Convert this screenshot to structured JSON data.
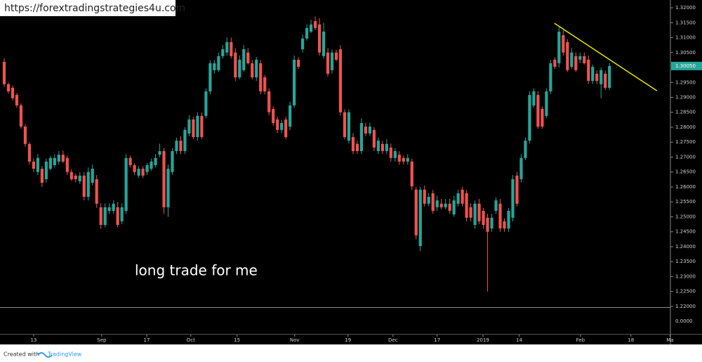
{
  "header": {
    "url": "https://forextradingstrategies4u.com"
  },
  "footer": {
    "created_with": "Created with",
    "brand": "TradingView"
  },
  "chart_data": {
    "type": "candlestick",
    "annotation": "long trade for me",
    "up_color": "#26a69a",
    "down_color": "#ef5350",
    "xlim": [
      -1,
      158.5
    ],
    "ylim": [
      1.21976,
      1.32259
    ],
    "xticks": [
      {
        "value": 7.0,
        "label": "13"
      },
      {
        "value": 23.2,
        "label": "Sep"
      },
      {
        "value": 33.9,
        "label": "17"
      },
      {
        "value": 44.4,
        "label": "Oct"
      },
      {
        "value": 55.4,
        "label": "15"
      },
      {
        "value": 69.1,
        "label": "Nov"
      },
      {
        "value": 81.8,
        "label": "19"
      },
      {
        "value": 92.5,
        "label": "Dec"
      },
      {
        "value": 103.0,
        "label": "17"
      },
      {
        "value": 113.9,
        "label": "2019"
      },
      {
        "value": 122.5,
        "label": "14"
      },
      {
        "value": 137.1,
        "label": "Feb"
      },
      {
        "value": 149.1,
        "label": "18"
      },
      {
        "value": 158.4,
        "label": "Ma"
      }
    ],
    "yticks": [
      {
        "value": 1.32,
        "label": "1.32000"
      },
      {
        "value": 1.315,
        "label": "1.31500"
      },
      {
        "value": 1.31,
        "label": "1.31000"
      },
      {
        "value": 1.305,
        "label": "1.30500"
      },
      {
        "value": 1.295,
        "label": "1.29500"
      },
      {
        "value": 1.29,
        "label": "1.29000"
      },
      {
        "value": 1.285,
        "label": "1.28500"
      },
      {
        "value": 1.28,
        "label": "1.28000"
      },
      {
        "value": 1.275,
        "label": "1.27500"
      },
      {
        "value": 1.27,
        "label": "1.27000"
      },
      {
        "value": 1.265,
        "label": "1.26500"
      },
      {
        "value": 1.26,
        "label": "1.26000"
      },
      {
        "value": 1.255,
        "label": "1.25500"
      },
      {
        "value": 1.25,
        "label": "1.25000"
      },
      {
        "value": 1.245,
        "label": "1.24500"
      },
      {
        "value": 1.24,
        "label": "1.24000"
      },
      {
        "value": 1.235,
        "label": "1.23500"
      },
      {
        "value": 1.23,
        "label": "1.23000"
      },
      {
        "value": 1.225,
        "label": "1.22500"
      },
      {
        "value": 1.22,
        "label": "1.22000"
      }
    ],
    "last_price": {
      "value": 1.3005,
      "label": "1.30050",
      "color": "#26a69a"
    },
    "lower_pane_label": "0.0000",
    "trendline": {
      "color": "#e8e800",
      "x": [
        130.9,
        155.3
      ],
      "y": [
        1.3148,
        1.2922
      ]
    },
    "open": [
      1.3019,
      1.2944,
      1.2932,
      1.2908,
      1.2873,
      1.2802,
      1.2744,
      1.2685,
      1.265,
      1.2661,
      1.2626,
      1.2661,
      1.2673,
      1.2685,
      1.2708,
      1.2697,
      1.265,
      1.2638,
      1.2619,
      1.2638,
      1.2567,
      1.2614,
      1.2626,
      1.2532,
      1.2473,
      1.252,
      1.252,
      1.2532,
      1.2485,
      1.252,
      1.2697,
      1.2673,
      1.2638,
      1.2661,
      1.265,
      1.2661,
      1.2673,
      1.2708,
      1.272,
      1.2532,
      1.265,
      1.272,
      1.2755,
      1.272,
      1.2779,
      1.2826,
      1.2767,
      1.2838,
      1.2838,
      1.292,
      1.2991,
      1.2991,
      1.3038,
      1.305,
      1.3085,
      1.305,
      1.2967,
      1.2991,
      1.305,
      1.3014,
      1.2967,
      1.3014,
      1.2967,
      1.292,
      1.2861,
      1.2826,
      1.2791,
      1.2826,
      1.2802,
      1.2873,
      1.3026,
      1.3061,
      1.3097,
      1.312,
      1.3155,
      1.3144,
      1.3038,
      1.305,
      1.2991,
      1.305,
      1.3061,
      1.285,
      1.2755,
      1.2767,
      1.2744,
      1.272,
      1.2802,
      1.2779,
      1.2791,
      1.272,
      1.2744,
      1.272,
      1.2732,
      1.2697,
      1.2708,
      1.2697,
      1.2685,
      1.2685,
      1.2591,
      1.2402,
      1.2591,
      1.2544,
      1.2579,
      1.2532,
      1.2544,
      1.2532,
      1.2544,
      1.2508,
      1.2544,
      1.2591,
      1.2579,
      1.2532,
      1.2473,
      1.2544,
      1.252,
      1.2497,
      1.2461,
      1.252,
      1.2544,
      1.2485,
      1.2461,
      1.2497,
      1.2638,
      1.2626,
      1.2697,
      1.2755,
      1.2873,
      1.2908,
      1.2861,
      1.2838,
      1.292,
      1.3026,
      1.3014,
      1.3108,
      1.3085,
      1.3002,
      1.3038,
      1.3026,
      1.3038,
      1.3026,
      1.2955,
      1.2979,
      1.2944,
      1.2979,
      1.2932
    ],
    "high": [
      1.3031,
      1.295,
      1.294,
      1.2915,
      1.288,
      1.281,
      1.275,
      1.2695,
      1.271,
      1.267,
      1.2695,
      1.2705,
      1.271,
      1.272,
      1.2722,
      1.2705,
      1.266,
      1.2645,
      1.265,
      1.265,
      1.2665,
      1.2675,
      1.264,
      1.2545,
      1.2545,
      1.2545,
      1.2555,
      1.255,
      1.2545,
      1.271,
      1.2705,
      1.268,
      1.267,
      1.267,
      1.268,
      1.2695,
      1.271,
      1.2745,
      1.273,
      1.2675,
      1.273,
      1.2765,
      1.277,
      1.28,
      1.284,
      1.2835,
      1.285,
      1.285,
      1.293,
      1.3025,
      1.3025,
      1.305,
      1.3075,
      1.31,
      1.31,
      1.3065,
      1.304,
      1.3075,
      1.3065,
      1.3025,
      1.3035,
      1.3025,
      1.2975,
      1.293,
      1.287,
      1.2835,
      1.2825,
      1.2835,
      1.2885,
      1.304,
      1.3035,
      1.311,
      1.3145,
      1.316,
      1.317,
      1.3165,
      1.315,
      1.3065,
      1.306,
      1.306,
      1.3075,
      1.286,
      1.286,
      1.278,
      1.2755,
      1.283,
      1.2815,
      1.2815,
      1.28,
      1.2765,
      1.2755,
      1.276,
      1.2745,
      1.273,
      1.272,
      1.2705,
      1.271,
      1.2695,
      1.26,
      1.26,
      1.2605,
      1.258,
      1.259,
      1.257,
      1.256,
      1.256,
      1.256,
      1.257,
      1.259,
      1.26,
      1.259,
      1.2545,
      1.2555,
      1.256,
      1.253,
      1.251,
      1.251,
      1.2565,
      1.256,
      1.2495,
      1.253,
      1.264,
      1.265,
      1.271,
      1.2765,
      1.292,
      1.293,
      1.292,
      1.287,
      1.293,
      1.3025,
      1.3035,
      1.3135,
      1.3125,
      1.3095,
      1.3065,
      1.305,
      1.305,
      1.305,
      1.304,
      1.301,
      1.299,
      1.3,
      1.299,
      1.3015
    ],
    "low": [
      1.2935,
      1.2912,
      1.289,
      1.2865,
      1.2795,
      1.2735,
      1.2675,
      1.265,
      1.264,
      1.26,
      1.2615,
      1.2655,
      1.2665,
      1.2675,
      1.268,
      1.264,
      1.262,
      1.2615,
      1.261,
      1.2555,
      1.2555,
      1.2605,
      1.253,
      1.246,
      1.2465,
      1.251,
      1.251,
      1.2465,
      1.2475,
      1.251,
      1.2665,
      1.264,
      1.263,
      1.263,
      1.264,
      1.2655,
      1.2665,
      1.27,
      1.251,
      1.25,
      1.264,
      1.271,
      1.271,
      1.271,
      1.277,
      1.276,
      1.2755,
      1.276,
      1.283,
      1.291,
      1.298,
      1.2985,
      1.303,
      1.304,
      1.303,
      1.2955,
      1.296,
      1.2985,
      1.301,
      1.296,
      1.2955,
      1.291,
      1.291,
      1.284,
      1.2805,
      1.278,
      1.278,
      1.276,
      1.279,
      1.2865,
      1.2995,
      1.305,
      1.309,
      1.3115,
      1.3125,
      1.304,
      1.303,
      1.297,
      1.298,
      1.302,
      1.284,
      1.276,
      1.2745,
      1.271,
      1.271,
      1.271,
      1.277,
      1.277,
      1.272,
      1.271,
      1.271,
      1.271,
      1.2685,
      1.2685,
      1.2675,
      1.2675,
      1.2675,
      1.259,
      1.2425,
      1.2385,
      1.2535,
      1.2535,
      1.251,
      1.252,
      1.2525,
      1.2525,
      1.251,
      1.25,
      1.2535,
      1.2535,
      1.2485,
      1.2485,
      1.246,
      1.2475,
      1.246,
      1.225,
      1.245,
      1.251,
      1.245,
      1.245,
      1.245,
      1.2485,
      1.2535,
      1.2615,
      1.269,
      1.2745,
      1.2865,
      1.2795,
      1.2795,
      1.283,
      1.291,
      1.2995,
      1.3,
      1.304,
      1.2985,
      1.2995,
      1.2985,
      1.3015,
      1.301,
      1.2945,
      1.2945,
      1.2945,
      1.2897,
      1.2925,
      1.2925
    ],
    "close": [
      1.2944,
      1.292,
      1.2897,
      1.2873,
      1.2802,
      1.2744,
      1.2685,
      1.2661,
      1.2697,
      1.2614,
      1.2685,
      1.2697,
      1.2697,
      1.2708,
      1.2685,
      1.265,
      1.2626,
      1.2626,
      1.2638,
      1.2567,
      1.265,
      1.2661,
      1.2544,
      1.2473,
      1.2532,
      1.2532,
      1.2544,
      1.2473,
      1.2532,
      1.2697,
      1.2673,
      1.265,
      1.2661,
      1.2638,
      1.2673,
      1.2685,
      1.2697,
      1.272,
      1.2532,
      1.2661,
      1.272,
      1.2755,
      1.272,
      1.2791,
      1.2826,
      1.2767,
      1.2838,
      1.2767,
      1.292,
      1.3014,
      1.3014,
      1.3038,
      1.3061,
      1.3085,
      1.3038,
      1.2967,
      1.3026,
      1.3061,
      1.3014,
      1.2967,
      1.3026,
      1.292,
      1.292,
      1.285,
      1.2814,
      1.2791,
      1.2814,
      1.2767,
      1.2873,
      1.3026,
      1.3002,
      1.3097,
      1.3132,
      1.3144,
      1.3132,
      1.305,
      1.312,
      1.2979,
      1.305,
      1.3026,
      1.285,
      1.2767,
      1.285,
      1.272,
      1.272,
      1.2814,
      1.2779,
      1.2802,
      1.2732,
      1.2755,
      1.272,
      1.2744,
      1.2697,
      1.272,
      1.2685,
      1.2685,
      1.2697,
      1.2602,
      1.2438,
      1.2591,
      1.2544,
      1.2567,
      1.252,
      1.2555,
      1.2532,
      1.2544,
      1.252,
      1.2555,
      1.2579,
      1.2544,
      1.2497,
      1.2497,
      1.2544,
      1.2485,
      1.2473,
      1.245,
      1.2497,
      1.2555,
      1.2461,
      1.2461,
      1.252,
      1.2626,
      1.2544,
      1.2697,
      1.2755,
      1.2908,
      1.292,
      1.2802,
      1.2802,
      1.292,
      1.3014,
      1.3002,
      1.312,
      1.305,
      1.2991,
      1.305,
      1.2991,
      1.3038,
      1.3014,
      1.2955,
      1.3002,
      1.2955,
      1.2991,
      1.2932,
      1.3005
    ]
  }
}
